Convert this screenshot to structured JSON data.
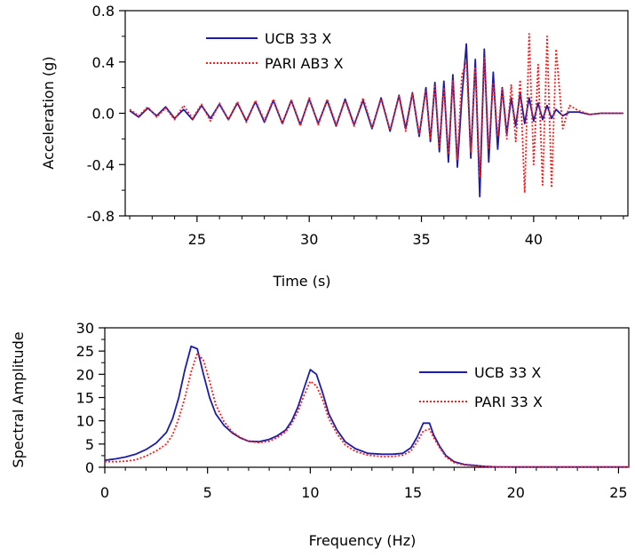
{
  "chart_data": [
    {
      "type": "line",
      "xlabel": "Time (s)",
      "ylabel": "Acceleration (g)",
      "xlim": [
        21.8,
        44.2
      ],
      "ylim": [
        -0.8,
        0.8
      ],
      "xticks": [
        "25",
        "30",
        "35",
        "40"
      ],
      "xtick_values": [
        25,
        30,
        35,
        40
      ],
      "yticks": [
        "0.8",
        "0.4",
        "0.0",
        "-0.4",
        "-0.8"
      ],
      "ytick_values": [
        0.8,
        0.4,
        0.0,
        -0.4,
        -0.8
      ],
      "legend_position": "top-left",
      "series": [
        {
          "name": "UCB 33 X",
          "color": "#1c1ca8",
          "style": "solid",
          "x": [
            22,
            22.4,
            22.8,
            23.2,
            23.6,
            24,
            24.4,
            24.8,
            25.2,
            25.6,
            26,
            26.4,
            26.8,
            27.2,
            27.6,
            28,
            28.4,
            28.8,
            29.2,
            29.6,
            30,
            30.4,
            30.8,
            31.2,
            31.6,
            32,
            32.4,
            32.8,
            33.2,
            33.6,
            34,
            34.3,
            34.6,
            34.9,
            35.2,
            35.4,
            35.6,
            35.8,
            36,
            36.2,
            36.4,
            36.6,
            36.8,
            37,
            37.2,
            37.4,
            37.6,
            37.8,
            38,
            38.2,
            38.4,
            38.6,
            38.8,
            39,
            39.2,
            39.4,
            39.6,
            39.8,
            40,
            40.2,
            40.4,
            40.6,
            40.8,
            41,
            41.3,
            41.6,
            42,
            42.5,
            43,
            43.5,
            44
          ],
          "y": [
            0.02,
            -0.03,
            0.04,
            -0.02,
            0.05,
            -0.04,
            0.03,
            -0.05,
            0.06,
            -0.04,
            0.07,
            -0.05,
            0.08,
            -0.06,
            0.09,
            -0.07,
            0.1,
            -0.08,
            0.1,
            -0.09,
            0.11,
            -0.08,
            0.1,
            -0.1,
            0.11,
            -0.09,
            0.1,
            -0.12,
            0.12,
            -0.14,
            0.14,
            -0.12,
            0.16,
            -0.18,
            0.2,
            -0.22,
            0.24,
            -0.3,
            0.25,
            -0.38,
            0.3,
            -0.42,
            0.12,
            0.54,
            -0.35,
            0.42,
            -0.65,
            0.5,
            -0.38,
            0.32,
            -0.28,
            0.2,
            -0.16,
            0.12,
            -0.1,
            0.16,
            -0.08,
            0.12,
            -0.06,
            0.08,
            -0.05,
            0.06,
            -0.04,
            0.03,
            -0.02,
            0.01,
            0.01,
            -0.01,
            0.0,
            0.0,
            0.0
          ]
        },
        {
          "name": "PARI AB3 X",
          "color": "#ff1a1a",
          "style": "dotted",
          "x": [
            22,
            22.4,
            22.8,
            23.2,
            23.6,
            24,
            24.4,
            24.8,
            25.2,
            25.6,
            26,
            26.4,
            26.8,
            27.2,
            27.6,
            28,
            28.4,
            28.8,
            29.2,
            29.6,
            30,
            30.4,
            30.8,
            31.2,
            31.6,
            32,
            32.4,
            32.8,
            33.2,
            33.6,
            34,
            34.3,
            34.6,
            34.9,
            35.2,
            35.4,
            35.6,
            35.8,
            36,
            36.2,
            36.4,
            36.6,
            36.8,
            37,
            37.2,
            37.4,
            37.6,
            37.8,
            38,
            38.2,
            38.4,
            38.6,
            38.8,
            39,
            39.2,
            39.4,
            39.6,
            39.8,
            40,
            40.2,
            40.4,
            40.6,
            40.8,
            41,
            41.3,
            41.6,
            42,
            42.5,
            43,
            43.5,
            44
          ],
          "y": [
            0.03,
            -0.02,
            0.05,
            -0.03,
            0.04,
            -0.05,
            0.06,
            -0.04,
            0.07,
            -0.06,
            0.08,
            -0.05,
            0.09,
            -0.07,
            0.1,
            -0.06,
            0.11,
            -0.08,
            0.1,
            -0.1,
            0.12,
            -0.09,
            0.11,
            -0.09,
            0.1,
            -0.1,
            0.12,
            -0.11,
            0.11,
            -0.13,
            0.13,
            -0.14,
            0.15,
            -0.16,
            0.18,
            -0.2,
            0.22,
            -0.26,
            0.2,
            -0.32,
            0.26,
            -0.36,
            0.3,
            0.4,
            -0.3,
            0.36,
            -0.5,
            0.44,
            -0.28,
            0.24,
            -0.18,
            0.2,
            -0.2,
            0.22,
            -0.22,
            0.26,
            -0.62,
            0.62,
            -0.4,
            0.38,
            -0.56,
            0.6,
            -0.58,
            0.5,
            -0.12,
            0.06,
            0.02,
            -0.01,
            0.0,
            0.0,
            0.0
          ]
        }
      ]
    },
    {
      "type": "line",
      "xlabel": "Frequency (Hz)",
      "ylabel": "Spectral Amplitude",
      "xlim": [
        0,
        25.5
      ],
      "ylim": [
        0,
        30
      ],
      "xticks": [
        "0",
        "5",
        "10",
        "15",
        "20",
        "25"
      ],
      "xtick_values": [
        0,
        5,
        10,
        15,
        20,
        25
      ],
      "yticks": [
        "30",
        "25",
        "20",
        "15",
        "10",
        "5",
        "0"
      ],
      "ytick_values": [
        30,
        25,
        20,
        15,
        10,
        5,
        0
      ],
      "legend_position": "right",
      "series": [
        {
          "name": "UCB 33 X",
          "color": "#1c1ca8",
          "style": "solid",
          "x": [
            0,
            0.5,
            1,
            1.5,
            2,
            2.5,
            3,
            3.3,
            3.6,
            3.9,
            4.2,
            4.5,
            4.8,
            5.1,
            5.4,
            5.8,
            6.2,
            6.6,
            7,
            7.5,
            8,
            8.4,
            8.8,
            9.1,
            9.4,
            9.7,
            10,
            10.3,
            10.6,
            10.9,
            11.3,
            11.7,
            12.2,
            12.8,
            13.5,
            14,
            14.5,
            14.9,
            15.2,
            15.5,
            15.8,
            16,
            16.3,
            16.6,
            17,
            17.5,
            18,
            18.5,
            19,
            20,
            22,
            25.5
          ],
          "y": [
            1.5,
            1.8,
            2.2,
            2.8,
            3.8,
            5.2,
            7.5,
            10.5,
            15,
            21,
            26,
            25.5,
            20,
            15,
            11.5,
            9,
            7.4,
            6.3,
            5.6,
            5.5,
            6,
            6.8,
            8,
            10,
            13,
            17,
            21,
            20,
            16,
            11.5,
            8,
            5.5,
            4,
            3,
            2.8,
            2.8,
            3,
            4.2,
            6.5,
            9.5,
            9.5,
            7,
            4.5,
            2.5,
            1.2,
            0.6,
            0.4,
            0.2,
            0.1,
            0.05,
            0.05,
            0.05
          ]
        },
        {
          "name": "PARI 33 X",
          "color": "#ff1a1a",
          "style": "dotted",
          "x": [
            0,
            0.5,
            1,
            1.5,
            2,
            2.5,
            3,
            3.3,
            3.6,
            3.9,
            4.2,
            4.5,
            4.8,
            5.1,
            5.4,
            5.8,
            6.2,
            6.6,
            7,
            7.5,
            8,
            8.4,
            8.8,
            9.1,
            9.4,
            9.7,
            10,
            10.3,
            10.6,
            10.9,
            11.3,
            11.7,
            12.2,
            12.8,
            13.5,
            14,
            14.5,
            14.9,
            15.2,
            15.5,
            15.8,
            16,
            16.3,
            16.6,
            17,
            17.5,
            18,
            18.5,
            19,
            20,
            22,
            25.5
          ],
          "y": [
            1.2,
            1.2,
            1.3,
            1.6,
            2.4,
            3.5,
            5,
            7,
            10.5,
            15,
            20.5,
            24.5,
            23,
            18.5,
            13.5,
            9.8,
            7.6,
            6.4,
            5.6,
            5.3,
            5.6,
            6.4,
            7.6,
            9.4,
            12,
            15.5,
            18.5,
            17.5,
            14.5,
            10.5,
            7.2,
            4.8,
            3.4,
            2.6,
            2.3,
            2.3,
            2.6,
            3.5,
            5.5,
            7.8,
            8.2,
            6.4,
            4.2,
            2.2,
            1,
            0.5,
            0.3,
            0.2,
            0.1,
            0.05,
            0.05,
            0.05
          ]
        }
      ]
    }
  ]
}
